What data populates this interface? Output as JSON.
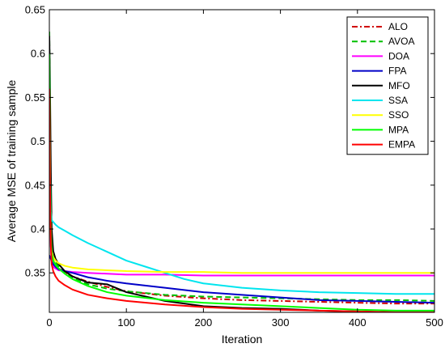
{
  "chart_data": {
    "type": "line",
    "title": "",
    "xlabel": "Iteration",
    "ylabel": "Average MSE of training sample",
    "xlim": [
      0,
      500
    ],
    "ylim": [
      0.305,
      0.65
    ],
    "xticks": [
      0,
      100,
      200,
      300,
      400,
      500
    ],
    "yticks": [
      0.35,
      0.4,
      0.45,
      0.5,
      0.55,
      0.6,
      0.65
    ],
    "ytick_labels": [
      "0.35",
      "0.4",
      "0.45",
      "0.5",
      "0.55",
      "0.6",
      "0.65"
    ],
    "xtick_labels": [
      "0",
      "100",
      "200",
      "300",
      "400",
      "500"
    ],
    "grid": false,
    "legend_position": "top-right",
    "series": [
      {
        "name": "ALO",
        "color": "#d00000",
        "dash": "dashdot",
        "x": [
          0,
          1,
          2,
          3,
          5,
          8,
          12,
          20,
          30,
          50,
          75,
          100,
          150,
          200,
          250,
          300,
          350,
          400,
          450,
          500
        ],
        "y": [
          0.56,
          0.45,
          0.4,
          0.375,
          0.364,
          0.359,
          0.355,
          0.351,
          0.346,
          0.34,
          0.334,
          0.329,
          0.324,
          0.321,
          0.319,
          0.318,
          0.317,
          0.316,
          0.315,
          0.315
        ]
      },
      {
        "name": "AVOA",
        "color": "#00c000",
        "dash": "dash",
        "x": [
          0,
          1,
          2,
          3,
          5,
          8,
          12,
          20,
          30,
          50,
          75,
          100,
          150,
          200,
          250,
          300,
          350,
          400,
          450,
          500
        ],
        "y": [
          0.625,
          0.5,
          0.42,
          0.385,
          0.368,
          0.362,
          0.357,
          0.35,
          0.344,
          0.337,
          0.332,
          0.329,
          0.325,
          0.323,
          0.322,
          0.321,
          0.32,
          0.319,
          0.319,
          0.318
        ]
      },
      {
        "name": "DOA",
        "color": "#ff00ff",
        "dash": "solid",
        "x": [
          0,
          1,
          2,
          3,
          5,
          8,
          12,
          20,
          30,
          50,
          75,
          100,
          150,
          200,
          250,
          300,
          350,
          400,
          450,
          500
        ],
        "y": [
          0.58,
          0.43,
          0.38,
          0.363,
          0.357,
          0.355,
          0.353,
          0.352,
          0.351,
          0.35,
          0.349,
          0.348,
          0.348,
          0.347,
          0.347,
          0.347,
          0.347,
          0.347,
          0.347,
          0.347
        ]
      },
      {
        "name": "FPA",
        "color": "#0000c8",
        "dash": "solid",
        "x": [
          0,
          1,
          2,
          3,
          5,
          8,
          12,
          20,
          30,
          50,
          75,
          100,
          150,
          200,
          250,
          300,
          350,
          400,
          450,
          500
        ],
        "y": [
          0.37,
          0.368,
          0.366,
          0.363,
          0.36,
          0.357,
          0.354,
          0.352,
          0.35,
          0.345,
          0.341,
          0.338,
          0.333,
          0.328,
          0.325,
          0.322,
          0.319,
          0.318,
          0.317,
          0.316
        ]
      },
      {
        "name": "MFO",
        "color": "#000000",
        "dash": "solid",
        "x": [
          0,
          1,
          2,
          3,
          5,
          8,
          12,
          20,
          30,
          50,
          75,
          100,
          150,
          200,
          250,
          300,
          350,
          400,
          450,
          500
        ],
        "y": [
          0.62,
          0.55,
          0.46,
          0.4,
          0.375,
          0.366,
          0.36,
          0.352,
          0.346,
          0.339,
          0.337,
          0.328,
          0.318,
          0.312,
          0.31,
          0.309,
          0.307,
          0.306,
          0.305,
          0.305
        ]
      },
      {
        "name": "SSA",
        "color": "#00e5ee",
        "dash": "solid",
        "x": [
          0,
          1,
          2,
          3,
          5,
          8,
          12,
          20,
          30,
          50,
          75,
          100,
          125,
          150,
          175,
          200,
          250,
          300,
          350,
          400,
          450,
          500
        ],
        "y": [
          0.58,
          0.46,
          0.42,
          0.41,
          0.408,
          0.405,
          0.402,
          0.398,
          0.393,
          0.384,
          0.374,
          0.364,
          0.357,
          0.35,
          0.343,
          0.338,
          0.333,
          0.33,
          0.328,
          0.327,
          0.326,
          0.326
        ]
      },
      {
        "name": "SSO",
        "color": "#ffff00",
        "dash": "solid",
        "x": [
          0,
          1,
          2,
          3,
          5,
          8,
          12,
          20,
          30,
          50,
          75,
          100,
          150,
          200,
          250,
          300,
          350,
          400,
          450,
          500
        ],
        "y": [
          0.57,
          0.43,
          0.39,
          0.375,
          0.368,
          0.364,
          0.361,
          0.358,
          0.356,
          0.354,
          0.353,
          0.352,
          0.351,
          0.351,
          0.35,
          0.35,
          0.35,
          0.35,
          0.35,
          0.35
        ]
      },
      {
        "name": "MPA",
        "color": "#00ff00",
        "dash": "solid",
        "x": [
          0,
          1,
          2,
          3,
          5,
          8,
          12,
          20,
          30,
          50,
          75,
          100,
          150,
          200,
          250,
          300,
          350,
          400,
          450,
          500
        ],
        "y": [
          0.6,
          0.46,
          0.4,
          0.372,
          0.364,
          0.359,
          0.355,
          0.349,
          0.343,
          0.335,
          0.328,
          0.324,
          0.319,
          0.316,
          0.314,
          0.312,
          0.31,
          0.308,
          0.307,
          0.307
        ]
      },
      {
        "name": "EMPA",
        "color": "#ff0000",
        "dash": "solid",
        "x": [
          0,
          1,
          2,
          3,
          5,
          8,
          12,
          20,
          30,
          50,
          75,
          100,
          150,
          200,
          250,
          300,
          350,
          400,
          450,
          500
        ],
        "y": [
          0.56,
          0.44,
          0.38,
          0.36,
          0.352,
          0.346,
          0.341,
          0.336,
          0.331,
          0.325,
          0.321,
          0.318,
          0.314,
          0.311,
          0.309,
          0.308,
          0.307,
          0.306,
          0.305,
          0.305
        ]
      }
    ]
  }
}
